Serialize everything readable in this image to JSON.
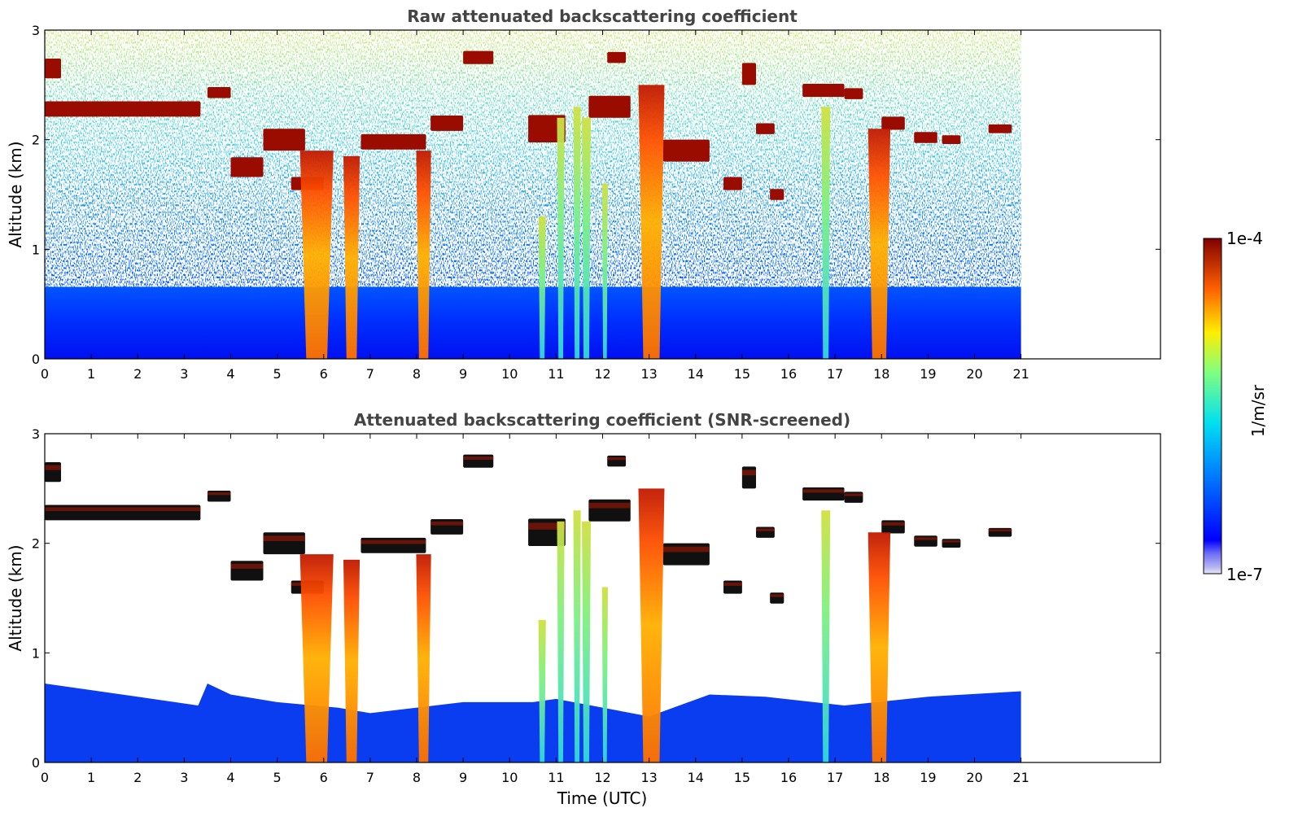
{
  "chart_data": [
    {
      "type": "heatmap",
      "title": "Raw attenuated backscattering coefficient",
      "ylabel": "Altitude (km)",
      "xlabel": "",
      "xlim": [
        0,
        24
      ],
      "ylim": [
        0,
        3
      ],
      "x_ticks": [
        "0",
        "1",
        "2",
        "3",
        "4",
        "5",
        "6",
        "7",
        "8",
        "9",
        "10",
        "11",
        "12",
        "13",
        "14",
        "15",
        "16",
        "17",
        "18",
        "19",
        "20",
        "21"
      ],
      "y_ticks": [
        "0",
        "1",
        "2",
        "3"
      ],
      "data_time_range": [
        0,
        21
      ],
      "screened": false,
      "features": [
        {
          "kind": "cloud_layer",
          "t_start": 0.0,
          "t_end": 0.35,
          "altitude": 2.65,
          "thickness": 0.18
        },
        {
          "kind": "cloud_layer",
          "t_start": 0.0,
          "t_end": 3.35,
          "altitude": 2.28,
          "thickness": 0.14
        },
        {
          "kind": "cloud_layer",
          "t_start": 3.5,
          "t_end": 4.0,
          "altitude": 2.43,
          "thickness": 0.1
        },
        {
          "kind": "cloud_layer",
          "t_start": 4.0,
          "t_end": 4.7,
          "altitude": 1.75,
          "thickness": 0.18
        },
        {
          "kind": "cloud_layer",
          "t_start": 4.7,
          "t_end": 5.6,
          "altitude": 2.0,
          "thickness": 0.2
        },
        {
          "kind": "cloud_layer",
          "t_start": 5.3,
          "t_end": 6.0,
          "altitude": 1.6,
          "thickness": 0.12
        },
        {
          "kind": "cloud_layer",
          "t_start": 6.8,
          "t_end": 8.2,
          "altitude": 1.98,
          "thickness": 0.14
        },
        {
          "kind": "cloud_layer",
          "t_start": 8.3,
          "t_end": 9.0,
          "altitude": 2.15,
          "thickness": 0.14
        },
        {
          "kind": "cloud_layer",
          "t_start": 9.0,
          "t_end": 9.65,
          "altitude": 2.75,
          "thickness": 0.12
        },
        {
          "kind": "cloud_layer",
          "t_start": 10.4,
          "t_end": 11.2,
          "altitude": 2.1,
          "thickness": 0.25
        },
        {
          "kind": "cloud_layer",
          "t_start": 11.7,
          "t_end": 12.6,
          "altitude": 2.3,
          "thickness": 0.2
        },
        {
          "kind": "cloud_layer",
          "t_start": 12.1,
          "t_end": 12.5,
          "altitude": 2.75,
          "thickness": 0.1
        },
        {
          "kind": "cloud_layer",
          "t_start": 13.3,
          "t_end": 14.3,
          "altitude": 1.9,
          "thickness": 0.2
        },
        {
          "kind": "cloud_layer",
          "t_start": 14.6,
          "t_end": 15.0,
          "altitude": 1.6,
          "thickness": 0.12
        },
        {
          "kind": "cloud_layer",
          "t_start": 15.0,
          "t_end": 15.3,
          "altitude": 2.6,
          "thickness": 0.2
        },
        {
          "kind": "cloud_layer",
          "t_start": 15.3,
          "t_end": 15.7,
          "altitude": 2.1,
          "thickness": 0.1
        },
        {
          "kind": "cloud_layer",
          "t_start": 15.6,
          "t_end": 15.9,
          "altitude": 1.5,
          "thickness": 0.1
        },
        {
          "kind": "cloud_layer",
          "t_start": 16.3,
          "t_end": 17.2,
          "altitude": 2.45,
          "thickness": 0.12
        },
        {
          "kind": "cloud_layer",
          "t_start": 17.2,
          "t_end": 17.6,
          "altitude": 2.42,
          "thickness": 0.1
        },
        {
          "kind": "cloud_layer",
          "t_start": 18.0,
          "t_end": 18.5,
          "altitude": 2.15,
          "thickness": 0.12
        },
        {
          "kind": "cloud_layer",
          "t_start": 18.7,
          "t_end": 19.2,
          "altitude": 2.02,
          "thickness": 0.1
        },
        {
          "kind": "cloud_layer",
          "t_start": 19.3,
          "t_end": 19.7,
          "altitude": 2.0,
          "thickness": 0.08
        },
        {
          "kind": "cloud_layer",
          "t_start": 20.3,
          "t_end": 20.8,
          "altitude": 2.1,
          "thickness": 0.08
        },
        {
          "kind": "precip_column",
          "t": 5.85,
          "width": 0.45,
          "top": 1.9
        },
        {
          "kind": "precip_column",
          "t": 6.6,
          "width": 0.22,
          "top": 1.85
        },
        {
          "kind": "precip_column",
          "t": 8.15,
          "width": 0.2,
          "top": 1.9
        },
        {
          "kind": "precip_column",
          "t": 10.7,
          "width": 0.1,
          "top": 1.3
        },
        {
          "kind": "precip_column",
          "t": 11.1,
          "width": 0.1,
          "top": 2.2
        },
        {
          "kind": "precip_column",
          "t": 11.45,
          "width": 0.1,
          "top": 2.3
        },
        {
          "kind": "precip_column",
          "t": 11.65,
          "width": 0.12,
          "top": 2.2
        },
        {
          "kind": "precip_column",
          "t": 12.05,
          "width": 0.08,
          "top": 1.6
        },
        {
          "kind": "precip_column",
          "t": 13.05,
          "width": 0.35,
          "top": 2.5
        },
        {
          "kind": "precip_column",
          "t": 16.8,
          "width": 0.12,
          "top": 2.3
        },
        {
          "kind": "precip_column",
          "t": 17.95,
          "width": 0.3,
          "top": 2.1
        }
      ]
    },
    {
      "type": "heatmap",
      "title": "Attenuated backscattering coefficient (SNR-screened)",
      "ylabel": "Altitude (km)",
      "xlabel": "Time (UTC)",
      "xlim": [
        0,
        24
      ],
      "ylim": [
        0,
        3
      ],
      "x_ticks": [
        "0",
        "1",
        "2",
        "3",
        "4",
        "5",
        "6",
        "7",
        "8",
        "9",
        "10",
        "11",
        "12",
        "13",
        "14",
        "15",
        "16",
        "17",
        "18",
        "19",
        "20",
        "21"
      ],
      "y_ticks": [
        "0",
        "1",
        "2",
        "3"
      ],
      "data_time_range": [
        0,
        21
      ],
      "screened": true,
      "boundary_layer_top": [
        [
          0,
          0.72
        ],
        [
          2,
          0.6
        ],
        [
          3.3,
          0.52
        ],
        [
          3.5,
          0.72
        ],
        [
          4,
          0.62
        ],
        [
          5,
          0.55
        ],
        [
          6.3,
          0.5
        ],
        [
          7,
          0.45
        ],
        [
          9,
          0.55
        ],
        [
          10.5,
          0.55
        ],
        [
          11,
          0.58
        ],
        [
          13,
          0.42
        ],
        [
          14.3,
          0.62
        ],
        [
          15.5,
          0.6
        ],
        [
          17.2,
          0.52
        ],
        [
          19,
          0.6
        ],
        [
          21,
          0.65
        ]
      ]
    }
  ],
  "colorbar": {
    "max_label": "1e-4",
    "min_label": "1e-7",
    "label": "1/m/sr"
  }
}
